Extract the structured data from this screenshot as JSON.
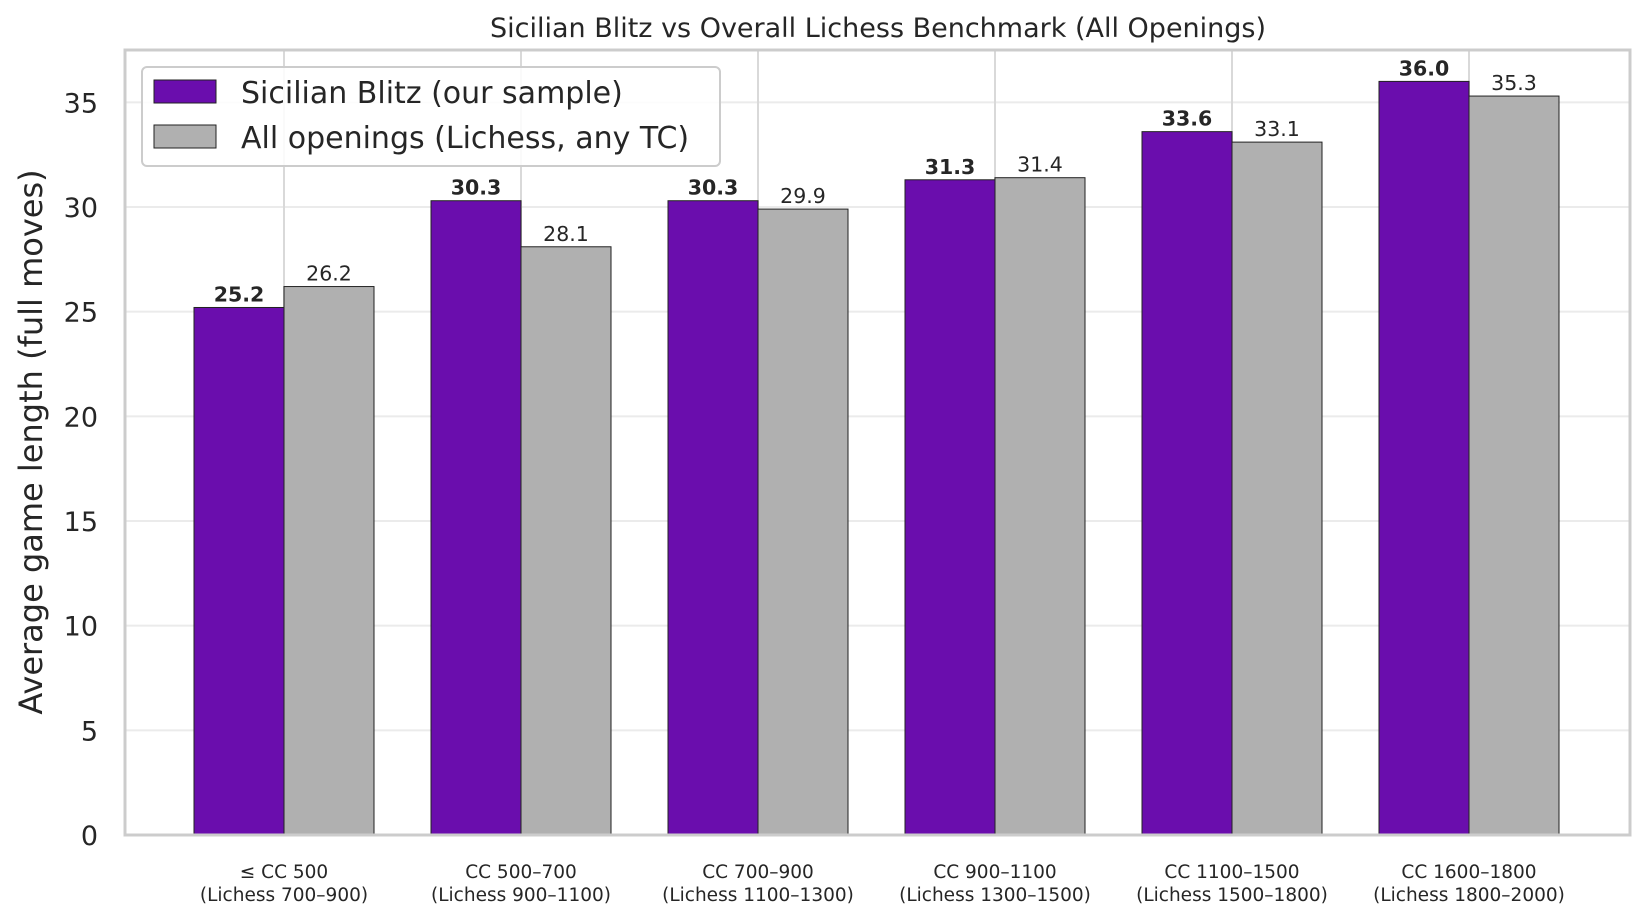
{
  "chart_data": {
    "type": "bar",
    "title": "Sicilian Blitz vs Overall Lichess Benchmark (All Openings)",
    "xlabel": "",
    "ylabel": "Average game length (full moves)",
    "ylim": [
      0,
      37.5
    ],
    "yticks": [
      0,
      5,
      10,
      15,
      20,
      25,
      30,
      35
    ],
    "grid": true,
    "legend_placement": "top-left",
    "categories": [
      [
        "≤ CC 500",
        "(Lichess 700–900)"
      ],
      [
        "CC 500–700",
        "(Lichess 900–1100)"
      ],
      [
        "CC 700–900",
        "(Lichess 1100–1300)"
      ],
      [
        "CC 900–1100",
        "(Lichess 1300–1500)"
      ],
      [
        "CC 1100–1500",
        "(Lichess 1500–1800)"
      ],
      [
        "CC 1600–1800",
        "(Lichess 1800–2000)"
      ]
    ],
    "series": [
      {
        "name": "Sicilian Blitz (our sample)",
        "color": "#6a0dad",
        "label_weight": "bold",
        "values": [
          25.2,
          30.3,
          30.3,
          31.3,
          33.6,
          36.0
        ],
        "labels": [
          "25.2",
          "30.3",
          "30.3",
          "31.3",
          "33.6",
          "36.0"
        ]
      },
      {
        "name": "All openings (Lichess, any TC)",
        "color": "#b0b0b0",
        "label_weight": "normal",
        "values": [
          26.2,
          28.1,
          29.9,
          31.4,
          33.1,
          35.3
        ],
        "labels": [
          "26.2",
          "28.1",
          "29.9",
          "31.4",
          "33.1",
          "35.3"
        ]
      }
    ]
  }
}
